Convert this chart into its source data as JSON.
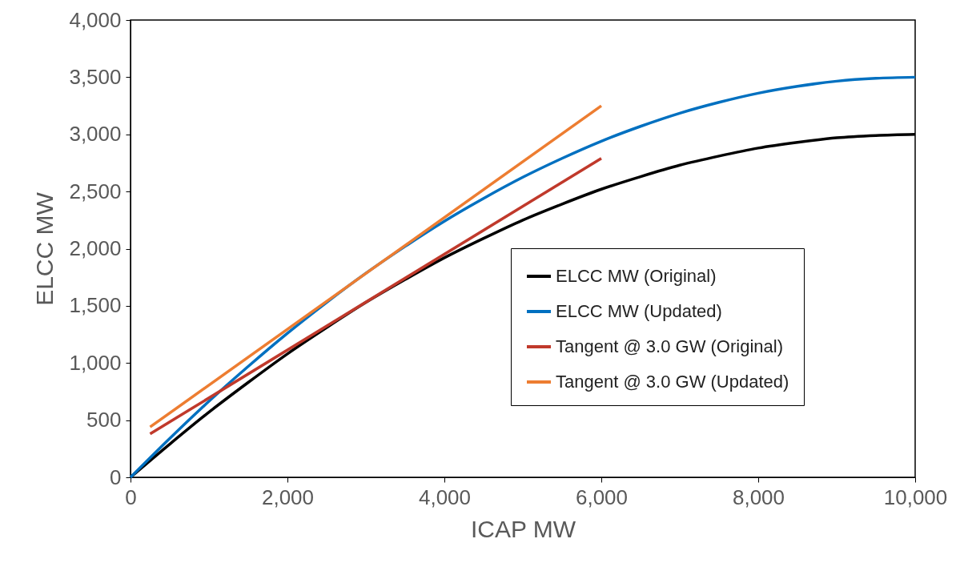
{
  "chart_data": {
    "type": "line",
    "xlabel": "ICAP MW",
    "ylabel": "ELCC MW",
    "xlim": [
      0,
      10000
    ],
    "ylim": [
      0,
      4000
    ],
    "xticks": [
      {
        "value": 0,
        "label": "0"
      },
      {
        "value": 2000,
        "label": "2,000"
      },
      {
        "value": 4000,
        "label": "4,000"
      },
      {
        "value": 6000,
        "label": "6,000"
      },
      {
        "value": 8000,
        "label": "8,000"
      },
      {
        "value": 10000,
        "label": "10,000"
      }
    ],
    "yticks": [
      {
        "value": 0,
        "label": "0"
      },
      {
        "value": 500,
        "label": "500"
      },
      {
        "value": 1000,
        "label": "1,000"
      },
      {
        "value": 1500,
        "label": "1,500"
      },
      {
        "value": 2000,
        "label": "2,000"
      },
      {
        "value": 2500,
        "label": "2,500"
      },
      {
        "value": 3000,
        "label": "3,000"
      },
      {
        "value": 3500,
        "label": "3,500"
      },
      {
        "value": 4000,
        "label": "4,000"
      }
    ],
    "grid": false,
    "legend": "bottom right",
    "marker": "none",
    "line_style": "solid",
    "series": [
      {
        "name": "ELCC MW (Original)",
        "color": "#000000",
        "x": [
          0,
          500,
          1000,
          1500,
          2000,
          2500,
          3000,
          3500,
          4000,
          4500,
          5000,
          5500,
          6000,
          6500,
          7000,
          7500,
          8000,
          8500,
          9000,
          9500,
          10000
        ],
        "values": [
          0,
          290,
          570,
          830,
          1080,
          1310,
          1530,
          1730,
          1920,
          2090,
          2250,
          2390,
          2520,
          2630,
          2730,
          2810,
          2880,
          2930,
          2970,
          2990,
          3000
        ]
      },
      {
        "name": "ELCC MW (Updated)",
        "color": "#0070c0",
        "x": [
          0,
          500,
          1000,
          1500,
          2000,
          2500,
          3000,
          3500,
          4000,
          4500,
          5000,
          5500,
          6000,
          6500,
          7000,
          7500,
          8000,
          8500,
          9000,
          9500,
          10000
        ],
        "values": [
          0,
          340,
          665,
          970,
          1260,
          1530,
          1785,
          2020,
          2240,
          2440,
          2625,
          2790,
          2940,
          3070,
          3185,
          3280,
          3360,
          3420,
          3465,
          3490,
          3500
        ]
      },
      {
        "name": "Tangent @ 3.0 GW (Original)",
        "color": "#c0392b",
        "x": [
          250,
          6000
        ],
        "values": [
          380,
          2790
        ]
      },
      {
        "name": "Tangent @ 3.0 GW (Updated)",
        "color": "#ed7d31",
        "x": [
          250,
          6000
        ],
        "values": [
          440,
          3250
        ]
      }
    ]
  }
}
